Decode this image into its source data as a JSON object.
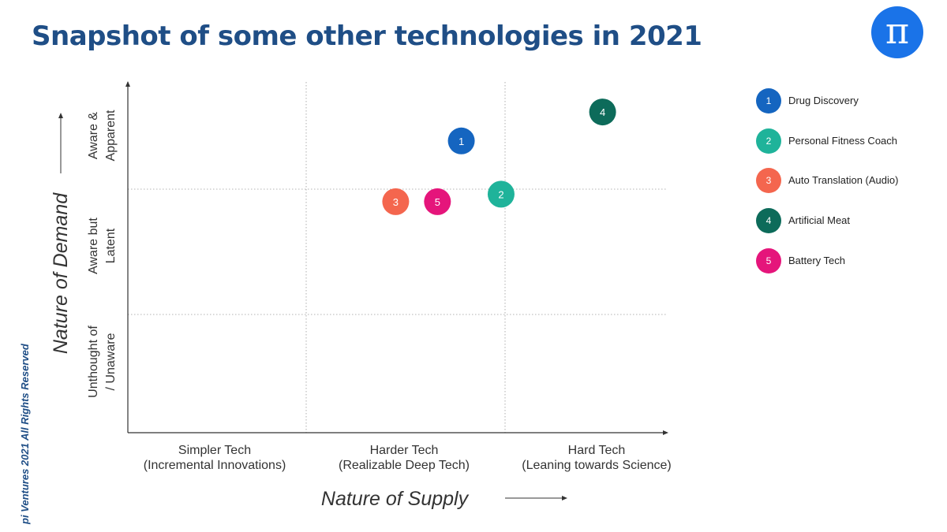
{
  "title": "Snapshot of some other technologies in 2021",
  "logo": {
    "icon": "pi-icon",
    "glyph": "π",
    "color": "#1a73e8"
  },
  "copyright": "pi Ventures 2021 All Rights Reserved",
  "colors": {
    "title": "#1f4e86",
    "axis": "#333333",
    "grid": "#9a9a9a"
  },
  "chart_data": {
    "type": "scatter",
    "xlabel": "Nature of Supply",
    "ylabel": "Nature of Demand",
    "x_categories": [
      [
        "Simpler Tech",
        "(Incremental Innovations)"
      ],
      [
        "Harder Tech",
        "(Realizable Deep Tech)"
      ],
      [
        "Hard Tech",
        "(Leaning towards Science)"
      ]
    ],
    "y_categories": [
      [
        "Unthought of",
        "/ Unaware"
      ],
      [
        "Aware but",
        "Latent"
      ],
      [
        "Aware &",
        "Apparent"
      ]
    ],
    "xlim": [
      0,
      3
    ],
    "ylim": [
      0,
      3
    ],
    "grid": true,
    "legend_position": "right",
    "points": [
      {
        "id": "1",
        "name": "Drug Discovery",
        "x": 1.78,
        "y": 2.45,
        "color": "#1565c0"
      },
      {
        "id": "2",
        "name": "Personal Fitness Coach",
        "x": 1.98,
        "y": 1.96,
        "color": "#1fb39a"
      },
      {
        "id": "3",
        "name": "Auto Translation (Audio)",
        "x": 1.45,
        "y": 1.9,
        "color": "#f4664e"
      },
      {
        "id": "4",
        "name": "Artificial Meat",
        "x": 2.6,
        "y": 2.72,
        "color": "#0d6b5a"
      },
      {
        "id": "5",
        "name": "Battery Tech",
        "x": 1.66,
        "y": 1.9,
        "color": "#e5157b"
      }
    ]
  }
}
